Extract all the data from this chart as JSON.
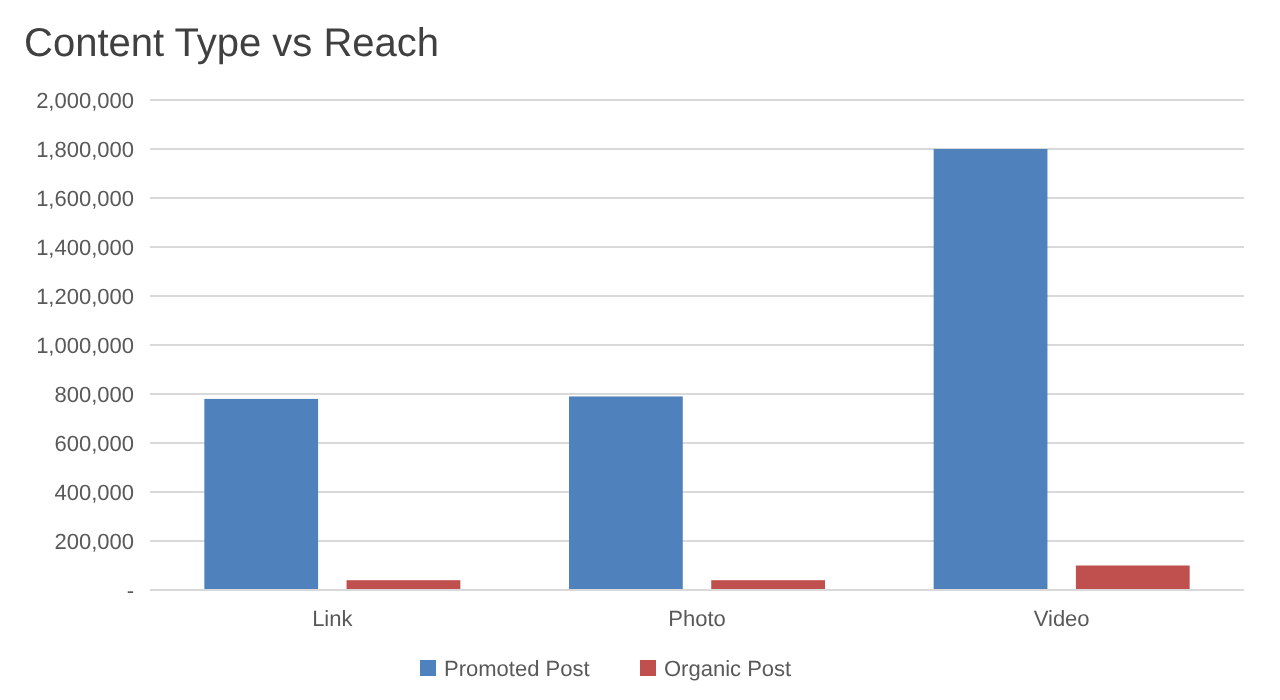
{
  "chart_data": {
    "type": "bar",
    "title": "Content Type vs Reach",
    "categories": [
      "Link",
      "Photo",
      "Video"
    ],
    "series": [
      {
        "name": "Promoted Post",
        "color": "#4f81bd",
        "values": [
          780000,
          790000,
          1800000
        ]
      },
      {
        "name": "Organic Post",
        "color": "#c0504d",
        "values": [
          40000,
          40000,
          100000
        ]
      }
    ],
    "ylim": [
      0,
      2000000
    ],
    "yticks": [
      {
        "value": 0,
        "label": "-"
      },
      {
        "value": 200000,
        "label": "200,000"
      },
      {
        "value": 400000,
        "label": "400,000"
      },
      {
        "value": 600000,
        "label": "600,000"
      },
      {
        "value": 800000,
        "label": "800,000"
      },
      {
        "value": 1000000,
        "label": "1,000,000"
      },
      {
        "value": 1200000,
        "label": "1,200,000"
      },
      {
        "value": 1400000,
        "label": "1,400,000"
      },
      {
        "value": 1600000,
        "label": "1,600,000"
      },
      {
        "value": 1800000,
        "label": "1,800,000"
      },
      {
        "value": 2000000,
        "label": "2,000,000"
      }
    ],
    "grid": "y",
    "legend": "bottom"
  }
}
